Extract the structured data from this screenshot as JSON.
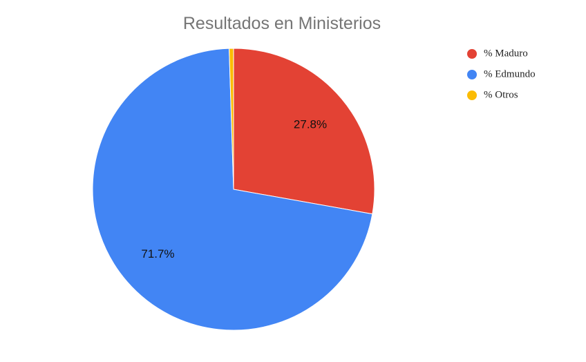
{
  "chart_data": {
    "type": "pie",
    "title": "Resultados en Ministerios",
    "categories": [
      "% Maduro",
      "% Edmundo",
      "% Otros"
    ],
    "values": [
      27.8,
      71.7,
      0.5
    ],
    "value_labels": [
      "27.8%",
      "71.7%",
      null
    ],
    "colors": [
      "#e34234",
      "#4285f4",
      "#fbbc04"
    ],
    "legend": "right"
  }
}
